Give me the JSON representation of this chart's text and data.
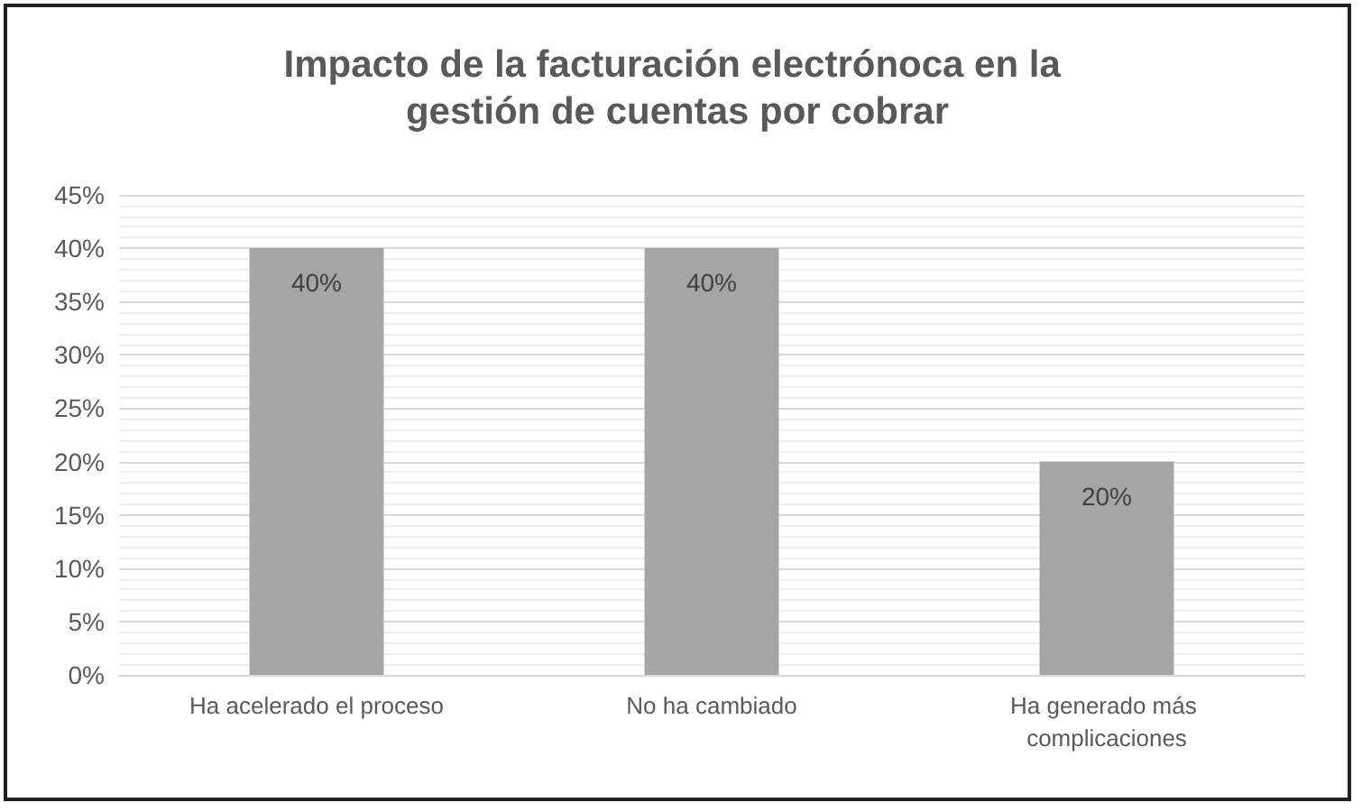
{
  "chart_data": {
    "type": "bar",
    "title": "Impacto de la facturación electrónoca en la gestión de cuentas por cobrar",
    "categories": [
      "Ha acelerado el proceso",
      "No ha cambiado",
      "Ha generado más complicaciones"
    ],
    "values": [
      40,
      40,
      20
    ],
    "color": "#a5a5a5",
    "value_labels": [
      "40%",
      "40%",
      "20%"
    ],
    "ylim": [
      0,
      45
    ],
    "yticks": [
      {
        "value": 0,
        "label": "0%"
      },
      {
        "value": 5,
        "label": "5%"
      },
      {
        "value": 10,
        "label": "10%"
      },
      {
        "value": 15,
        "label": "15%"
      },
      {
        "value": 20,
        "label": "20%"
      },
      {
        "value": 25,
        "label": "25%"
      },
      {
        "value": 30,
        "label": "30%"
      },
      {
        "value": 35,
        "label": "35%"
      },
      {
        "value": 40,
        "label": "40%"
      },
      {
        "value": 45,
        "label": "45%"
      }
    ],
    "grid": "y"
  }
}
